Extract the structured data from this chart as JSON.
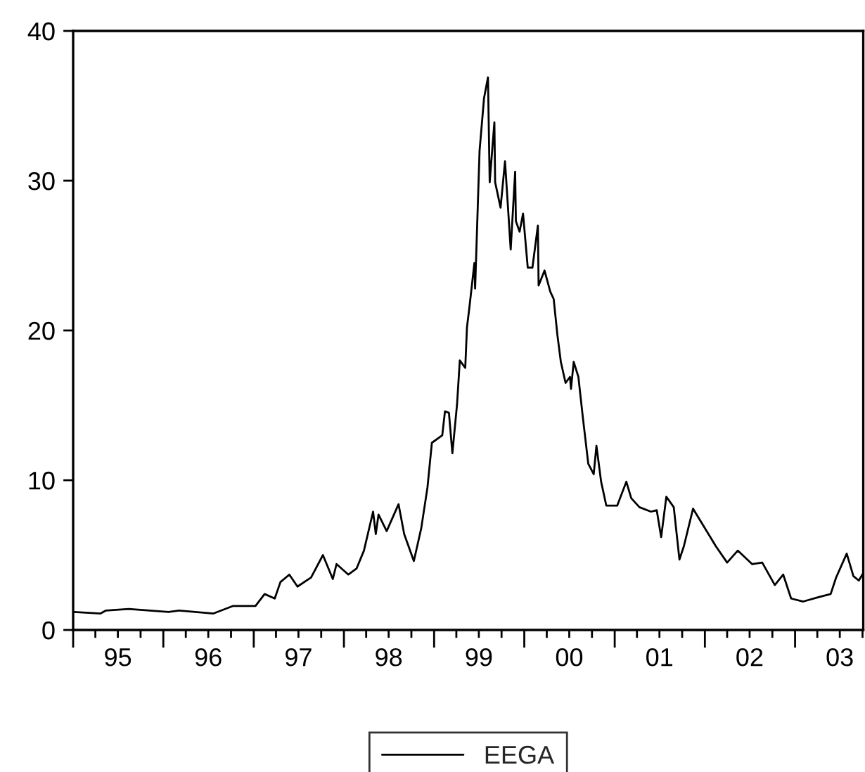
{
  "chart_data": {
    "type": "line",
    "series": [
      {
        "name": "EEGA",
        "color": "#000000",
        "x": [
          "1995-01-04",
          "1995-04-22",
          "1995-05-14",
          "1995-08-14",
          "1996-01-22",
          "1996-03-05",
          "1996-07-22",
          "1996-10-08",
          "1997-01-08",
          "1997-02-14",
          "1997-03-27",
          "1997-04-19",
          "1997-05-25",
          "1997-06-27",
          "1997-08-21",
          "1997-10-08",
          "1997-11-17",
          "1997-12-02",
          "1998-01-19",
          "1998-02-21",
          "1998-03-23",
          "1998-04-29",
          "1998-05-10",
          "1998-05-21",
          "1998-06-23",
          "1998-08-10",
          "1998-09-02",
          "1998-10-11",
          "1998-11-10",
          "1998-12-05",
          "1998-12-23",
          "1999-02-03",
          "1999-02-14",
          "1999-03-02",
          "1999-03-16",
          "1999-04-04",
          "1999-04-15",
          "1999-05-07",
          "1999-05-14",
          "1999-05-25",
          "1999-06-13",
          "1999-06-16",
          "1999-07-04",
          "1999-07-22",
          "1999-08-07",
          "1999-08-14",
          "1999-09-02",
          "1999-09-05",
          "1999-09-27",
          "1999-10-15",
          "1999-11-07",
          "1999-11-25",
          "1999-11-28",
          "1999-12-13",
          "1999-12-27",
          "2000-01-15",
          "2000-02-03",
          "2000-02-25",
          "2000-02-28",
          "2000-03-23",
          "2000-04-15",
          "2000-04-29",
          "2000-05-14",
          "2000-05-28",
          "2000-06-16",
          "2000-07-04",
          "2000-07-08",
          "2000-07-19",
          "2000-08-07",
          "2000-08-25",
          "2000-09-16",
          "2000-10-08",
          "2000-10-19",
          "2000-11-07",
          "2000-11-28",
          "2001-01-11",
          "2001-02-17",
          "2001-03-09",
          "2001-04-11",
          "2001-05-28",
          "2001-06-20",
          "2001-07-08",
          "2001-07-29",
          "2001-08-28",
          "2001-09-20",
          "2001-10-08",
          "2001-11-14",
          "2002-01-01",
          "2002-02-14",
          "2002-04-01",
          "2002-05-14",
          "2002-07-11",
          "2002-08-21",
          "2002-10-11",
          "2002-11-14",
          "2002-12-16",
          "2003-02-03",
          "2003-04-08",
          "2003-05-25",
          "2003-06-16",
          "2003-07-29",
          "2003-08-25",
          "2003-09-16",
          "2003-10-04"
        ],
        "values": [
          1.2,
          1.1,
          1.3,
          1.4,
          1.2,
          1.3,
          1.1,
          1.6,
          1.6,
          2.4,
          2.1,
          3.2,
          3.7,
          2.9,
          3.5,
          5.0,
          3.4,
          4.4,
          3.7,
          4.1,
          5.3,
          7.9,
          6.4,
          7.7,
          6.6,
          8.4,
          6.4,
          4.6,
          6.8,
          9.5,
          12.5,
          13,
          14.6,
          14.5,
          11.8,
          15.1,
          18,
          17.5,
          20.2,
          21.7,
          24.5,
          22.8,
          32.0,
          35.5,
          36.9,
          29.9,
          33.9,
          29.9,
          28.2,
          31.3,
          25.4,
          30.6,
          27.3,
          26.6,
          27.8,
          24.2,
          24.2,
          27.0,
          23.0,
          24.0,
          22.6,
          22.1,
          19.7,
          17.9,
          16.5,
          16.9,
          16.1,
          17.9,
          16.9,
          14.2,
          11.1,
          10.4,
          12.3,
          9.9,
          8.3,
          8.3,
          9.9,
          8.8,
          8.2,
          7.9,
          8.0,
          6.2,
          8.9,
          8.2,
          4.7,
          5.6,
          8.1,
          6.8,
          5.6,
          4.5,
          5.3,
          4.4,
          4.5,
          3.0,
          3.7,
          2.1,
          1.9,
          2.2,
          2.4,
          3.5,
          5.1,
          3.6,
          3.3,
          3.8
        ]
      }
    ],
    "xlim": [
      "1995-01-01",
      "2003-10-04"
    ],
    "xticks": [
      {
        "value": "1995-01-01",
        "label": null
      },
      {
        "value": "1995-04-01",
        "label": null
      },
      {
        "value": "1995-07-01",
        "label": "95"
      },
      {
        "value": "1995-10-01",
        "label": null
      },
      {
        "value": "1996-01-01",
        "label": null
      },
      {
        "value": "1996-04-01",
        "label": null
      },
      {
        "value": "1996-07-01",
        "label": "96"
      },
      {
        "value": "1996-10-01",
        "label": null
      },
      {
        "value": "1997-01-01",
        "label": null
      },
      {
        "value": "1997-04-01",
        "label": null
      },
      {
        "value": "1997-07-01",
        "label": "97"
      },
      {
        "value": "1997-10-01",
        "label": null
      },
      {
        "value": "1998-01-01",
        "label": null
      },
      {
        "value": "1998-04-01",
        "label": null
      },
      {
        "value": "1998-07-01",
        "label": "98"
      },
      {
        "value": "1998-10-01",
        "label": null
      },
      {
        "value": "1999-01-01",
        "label": null
      },
      {
        "value": "1999-04-01",
        "label": null
      },
      {
        "value": "1999-07-01",
        "label": "99"
      },
      {
        "value": "1999-10-01",
        "label": null
      },
      {
        "value": "2000-01-01",
        "label": null
      },
      {
        "value": "2000-04-01",
        "label": null
      },
      {
        "value": "2000-07-01",
        "label": "00"
      },
      {
        "value": "2000-10-01",
        "label": null
      },
      {
        "value": "2001-01-01",
        "label": null
      },
      {
        "value": "2001-04-01",
        "label": null
      },
      {
        "value": "2001-07-01",
        "label": "01"
      },
      {
        "value": "2001-10-01",
        "label": null
      },
      {
        "value": "2002-01-01",
        "label": null
      },
      {
        "value": "2002-04-01",
        "label": null
      },
      {
        "value": "2002-07-01",
        "label": "02"
      },
      {
        "value": "2002-10-01",
        "label": null
      },
      {
        "value": "2003-01-01",
        "label": null
      },
      {
        "value": "2003-04-01",
        "label": null
      },
      {
        "value": "2003-07-01",
        "label": "03"
      },
      {
        "value": "2003-10-01",
        "label": null
      }
    ],
    "ylim": [
      0,
      40
    ],
    "yticks": [
      0,
      10,
      20,
      30,
      40
    ],
    "legend": "bottom",
    "grid": false,
    "line_style": "solid"
  }
}
